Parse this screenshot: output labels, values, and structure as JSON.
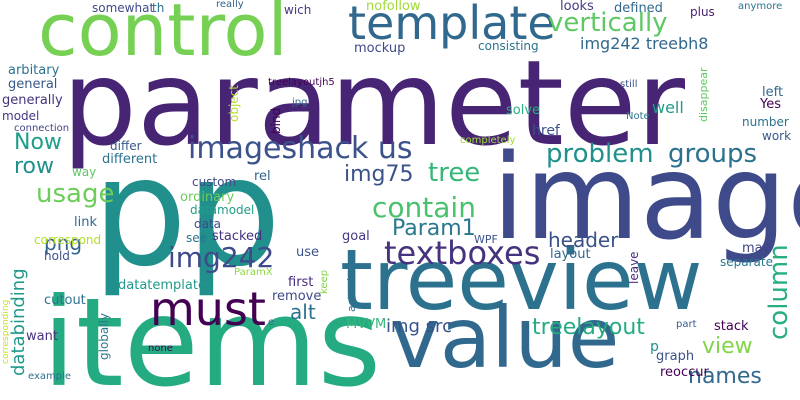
{
  "words": [
    {
      "text": "parameter",
      "color": "#482475"
    },
    {
      "text": "p",
      "color": "#21908d"
    },
    {
      "text": "image",
      "color": "#3e4a89"
    },
    {
      "text": "items",
      "color": "#25ab82"
    },
    {
      "text": "treeview",
      "color": "#2c728e"
    },
    {
      "text": "control",
      "color": "#75d054"
    },
    {
      "text": "value",
      "color": "#31688e"
    },
    {
      "text": "template",
      "color": "#31688e"
    },
    {
      "text": "must",
      "color": "#440154"
    },
    {
      "text": "imageshack us",
      "color": "#3b528b"
    },
    {
      "text": "textboxes",
      "color": "#46327e"
    },
    {
      "text": "img242",
      "color": "#3e4a89"
    },
    {
      "text": "problem",
      "color": "#21908d"
    },
    {
      "text": "groups",
      "color": "#2c728e"
    },
    {
      "text": "vertically",
      "color": "#5ec962"
    },
    {
      "text": "usage",
      "color": "#6ccd5a"
    },
    {
      "text": "contain",
      "color": "#4ac16d"
    },
    {
      "text": "tree",
      "color": "#35b779"
    },
    {
      "text": "column",
      "color": "#29af7f"
    },
    {
      "text": "Now",
      "color": "#1f9e89"
    },
    {
      "text": "img75",
      "color": "#3b528b"
    },
    {
      "text": "treelayout",
      "color": "#25ab82"
    },
    {
      "text": "names",
      "color": "#31688e"
    },
    {
      "text": "row",
      "color": "#21908d"
    },
    {
      "text": "Param1",
      "color": "#2a788e"
    },
    {
      "text": "header",
      "color": "#3b528b"
    },
    {
      "text": "alt",
      "color": "#2c728e"
    },
    {
      "text": "png",
      "color": "#33638d"
    },
    {
      "text": "img src",
      "color": "#3b528b"
    },
    {
      "text": "view",
      "color": "#84d44b"
    },
    {
      "text": "databinding",
      "color": "#1f9a8a"
    },
    {
      "text": "img242 treebh8",
      "color": "#31688e"
    },
    {
      "text": "consisting",
      "color": "#2c728e"
    },
    {
      "text": "mockup",
      "color": "#3e4a89"
    },
    {
      "text": "arbitary",
      "color": "#2c728e"
    },
    {
      "text": "general",
      "color": "#38588c"
    },
    {
      "text": "generally",
      "color": "#46327e"
    },
    {
      "text": "model",
      "color": "#443983"
    },
    {
      "text": "connection",
      "color": "#414487"
    },
    {
      "text": "somewhat",
      "color": "#3e4a89"
    },
    {
      "text": "th",
      "color": "#2c728e"
    },
    {
      "text": "really",
      "color": "#33638d"
    },
    {
      "text": "wich",
      "color": "#443983"
    },
    {
      "text": "nofollow",
      "color": "#a0da39"
    },
    {
      "text": "looks",
      "color": "#443983"
    },
    {
      "text": "defined",
      "color": "#31688e"
    },
    {
      "text": "plus",
      "color": "#481f70"
    },
    {
      "text": "anymore",
      "color": "#2c728e"
    },
    {
      "text": "treelayoutjh5",
      "color": "#440154"
    },
    {
      "text": "jpg",
      "color": "#31688e"
    },
    {
      "text": "object",
      "color": "#b5de2b"
    },
    {
      "text": "bind",
      "color": "#440154"
    },
    {
      "text": "separate",
      "color": "#2a788e"
    },
    {
      "text": "disappear",
      "color": "#5ec962"
    },
    {
      "text": "still",
      "color": "#3b528b"
    },
    {
      "text": "left",
      "color": "#31688e"
    },
    {
      "text": "Yes",
      "color": "#440154"
    },
    {
      "text": "Note",
      "color": "#2c728e"
    },
    {
      "text": "number",
      "color": "#2c728e"
    },
    {
      "text": "work",
      "color": "#38588c"
    },
    {
      "text": "well",
      "color": "#1f9a8a"
    },
    {
      "text": "solve",
      "color": "#29af7f"
    },
    {
      "text": "href",
      "color": "#3b528b"
    },
    {
      "text": "completely",
      "color": "#a0da39"
    },
    {
      "text": "differ",
      "color": "#38588c"
    },
    {
      "text": "different",
      "color": "#2c728e"
    },
    {
      "text": "way",
      "color": "#5ec962"
    },
    {
      "text": "rel",
      "color": "#33638d"
    },
    {
      "text": "custom",
      "color": "#3e4a89"
    },
    {
      "text": "ordinary",
      "color": "#6ccd5a"
    },
    {
      "text": "datamodel",
      "color": "#1f9e89"
    },
    {
      "text": "data",
      "color": "#3e4a89"
    },
    {
      "text": "stacked",
      "color": "#46327e"
    },
    {
      "text": "see",
      "color": "#2c728e"
    },
    {
      "text": "link",
      "color": "#31688e"
    },
    {
      "text": "correspond",
      "color": "#b5de2b"
    },
    {
      "text": "hold",
      "color": "#3b528b"
    },
    {
      "text": "goal",
      "color": "#443983"
    },
    {
      "text": "WPF",
      "color": "#3b528b"
    },
    {
      "text": "layout",
      "color": "#31688e"
    },
    {
      "text": "leave",
      "color": "#472d7b"
    },
    {
      "text": "may",
      "color": "#414487"
    },
    {
      "text": "datatemplates",
      "color": "#1f9a8a"
    },
    {
      "text": "first",
      "color": "#472d7b"
    },
    {
      "text": "use",
      "color": "#3b528b"
    },
    {
      "text": "keep",
      "color": "#84d44b"
    },
    {
      "text": "ParamX",
      "color": "#90d743"
    },
    {
      "text": "remove",
      "color": "#3e4a89"
    },
    {
      "text": "MVVM",
      "color": "#35b779"
    },
    {
      "text": "actual",
      "color": "#2c728e"
    },
    {
      "text": "cutout",
      "color": "#2c728e"
    },
    {
      "text": "want",
      "color": "#46327e"
    },
    {
      "text": "globally",
      "color": "#2a788e"
    },
    {
      "text": "corresponding",
      "color": "#c8e020"
    },
    {
      "text": "example",
      "color": "#2c728e"
    },
    {
      "text": "none",
      "color": "#440154"
    },
    {
      "text": "e",
      "color": "#31688e"
    },
    {
      "text": "part",
      "color": "#38588c"
    },
    {
      "text": "stack",
      "color": "#440154"
    },
    {
      "text": "graph",
      "color": "#3b528b"
    },
    {
      "text": "reoccur",
      "color": "#440154"
    }
  ]
}
